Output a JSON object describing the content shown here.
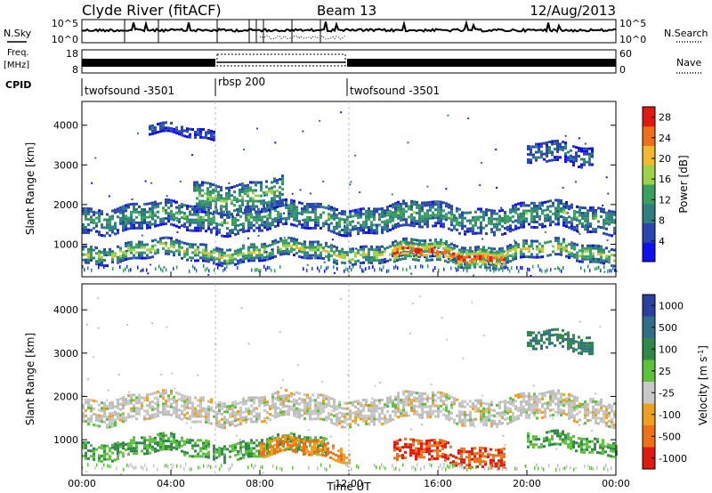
{
  "header": {
    "station": "Clyde River (fitACF)",
    "beam": "Beam 13",
    "date": "12/Aug/2013"
  },
  "strips": {
    "nsky_label": "N.Sky",
    "nsearch_label": "N.Search",
    "freq_label": "Freq.",
    "freq_unit": "[MHz]",
    "nave_label": "Nave",
    "cpid_label": "CPID",
    "noise_ticks": [
      "10^5",
      "10^0"
    ],
    "freq_ticks": [
      "18",
      "8"
    ],
    "nave_ticks": [
      "60",
      "0"
    ],
    "cpid_segments": [
      {
        "label": "twofsound -3501",
        "start": 0,
        "end": 6
      },
      {
        "label": "rbsp 200",
        "start": 6,
        "end": 12
      },
      {
        "label": "twofsound -3501",
        "start": 12,
        "end": 24
      }
    ]
  },
  "axes": {
    "yaxis_label": "Slant Range [km]",
    "y_ticks": [
      "1000",
      "2000",
      "3000",
      "4000"
    ],
    "x_ticks": [
      "00:00",
      "04:00",
      "08:00",
      "12:00",
      "16:00",
      "20:00",
      "00:00"
    ],
    "xlabel": "Time UT"
  },
  "colorbars": {
    "power_label": "Power [dB]",
    "power_ticks": [
      "4",
      "8",
      "12",
      "16",
      "20",
      "24",
      "28"
    ],
    "velocity_label": "Velocity  [m s",
    "velocity_label_sup": "-1",
    "velocity_label_end": "]",
    "velocity_ticks": [
      "1000",
      "500",
      "100",
      "25",
      "-25",
      "-100",
      "-500",
      "-1000"
    ]
  },
  "colors": {
    "power_scale": [
      "#1010ee",
      "#2a46b0",
      "#2f7f7f",
      "#3aa060",
      "#9bd24a",
      "#f2b830",
      "#f07018",
      "#e01a10"
    ],
    "velocity_scale": [
      "#2b3f9e",
      "#2f6f8a",
      "#2f8a4a",
      "#5dc23b",
      "#bdbdbd",
      "#c8c8c8",
      "#f0a020",
      "#f07018",
      "#e01a10"
    ]
  },
  "chart_data": [
    {
      "type": "heatmap",
      "title": "Power",
      "xlabel": "Time UT",
      "ylabel": "Slant Range [km]",
      "xlim": [
        0,
        24
      ],
      "ylim": [
        180,
        4600
      ],
      "colorbar_range": [
        0,
        30
      ],
      "colorbar_label": "Power [dB]",
      "bands": [
        {
          "start": 0,
          "end": 24,
          "center_km": 1650,
          "width_km": 650,
          "value": 12
        },
        {
          "start": 0,
          "end": 24,
          "center_km": 780,
          "width_km": 420,
          "value": 16
        },
        {
          "start": 5,
          "end": 9,
          "center_km": 2200,
          "width_km": 800,
          "value": 14
        },
        {
          "start": 14,
          "end": 19,
          "center_km": 700,
          "width_km": 450,
          "value": 26
        },
        {
          "start": 3,
          "end": 6,
          "center_km": 3800,
          "width_km": 250,
          "value": 6
        },
        {
          "start": 20,
          "end": 23,
          "center_km": 3200,
          "width_km": 500,
          "value": 8
        }
      ]
    },
    {
      "type": "heatmap",
      "title": "Velocity",
      "xlabel": "Time UT",
      "ylabel": "Slant Range [km]",
      "xlim": [
        0,
        24
      ],
      "ylim": [
        180,
        4600
      ],
      "colorbar_range": [
        -1000,
        1000
      ],
      "colorbar_label": "Velocity [m s-1]",
      "bands": [
        {
          "start": 0,
          "end": 24,
          "center_km": 1700,
          "width_km": 600,
          "value": 0
        },
        {
          "start": 0,
          "end": 11,
          "center_km": 800,
          "width_km": 400,
          "value": 100
        },
        {
          "start": 8,
          "end": 12,
          "center_km": 750,
          "width_km": 350,
          "value": -100
        },
        {
          "start": 14,
          "end": 19,
          "center_km": 650,
          "width_km": 450,
          "value": -500
        },
        {
          "start": 20,
          "end": 24,
          "center_km": 900,
          "width_km": 350,
          "value": 100
        },
        {
          "start": 20,
          "end": 23,
          "center_km": 3200,
          "width_km": 400,
          "value": 500
        }
      ]
    }
  ]
}
